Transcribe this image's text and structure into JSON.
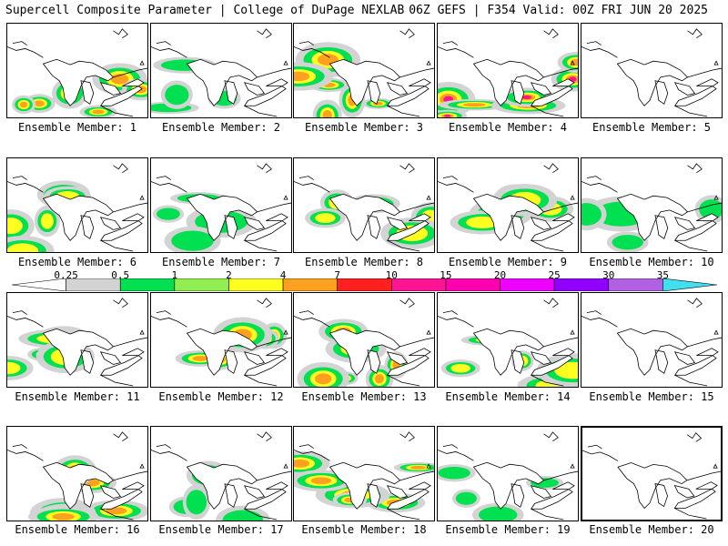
{
  "header": {
    "left": "Supercell Composite Parameter | College of DuPage NEXLAB",
    "right": "06Z GEFS | F354 Valid: 00Z FRI JUN 20 2025"
  },
  "colorbar": {
    "labels": [
      "0.25",
      "0.5",
      "1",
      "2",
      "4",
      "7",
      "10",
      "15",
      "20",
      "25",
      "30",
      "35"
    ],
    "colors": [
      "#d3d3d3",
      "#00e050",
      "#90ee50",
      "#ffff20",
      "#ffa020",
      "#ff2020",
      "#ff1493",
      "#ff00b0",
      "#ee00ff",
      "#9000ff",
      "#b060e0",
      "#40e0f0"
    ]
  },
  "panels": [
    {
      "caption": "Ensemble Member: 1",
      "selected": false,
      "level": 3
    },
    {
      "caption": "Ensemble Member: 2",
      "selected": false,
      "level": 1
    },
    {
      "caption": "Ensemble Member: 3",
      "selected": false,
      "level": 3
    },
    {
      "caption": "Ensemble Member: 4",
      "selected": false,
      "level": 4
    },
    {
      "caption": "Ensemble Member: 5",
      "selected": false,
      "level": 0
    },
    {
      "caption": "Ensemble Member: 6",
      "selected": false,
      "level": 2
    },
    {
      "caption": "Ensemble Member: 7",
      "selected": false,
      "level": 1
    },
    {
      "caption": "Ensemble Member: 8",
      "selected": false,
      "level": 2
    },
    {
      "caption": "Ensemble Member: 9",
      "selected": false,
      "level": 2
    },
    {
      "caption": "Ensemble Member: 10",
      "selected": false,
      "level": 1
    },
    {
      "caption": "Ensemble Member: 11",
      "selected": false,
      "level": 2
    },
    {
      "caption": "Ensemble Member: 12",
      "selected": false,
      "level": 3
    },
    {
      "caption": "Ensemble Member: 13",
      "selected": false,
      "level": 3
    },
    {
      "caption": "Ensemble Member: 14",
      "selected": false,
      "level": 2
    },
    {
      "caption": "Ensemble Member: 15",
      "selected": false,
      "level": 0
    },
    {
      "caption": "Ensemble Member: 16",
      "selected": false,
      "level": 3
    },
    {
      "caption": "Ensemble Member: 17",
      "selected": false,
      "level": 1
    },
    {
      "caption": "Ensemble Member: 18",
      "selected": false,
      "level": 3
    },
    {
      "caption": "Ensemble Member: 19",
      "selected": false,
      "level": 1
    },
    {
      "caption": "Ensemble Member: 20",
      "selected": true,
      "level": 0
    }
  ]
}
